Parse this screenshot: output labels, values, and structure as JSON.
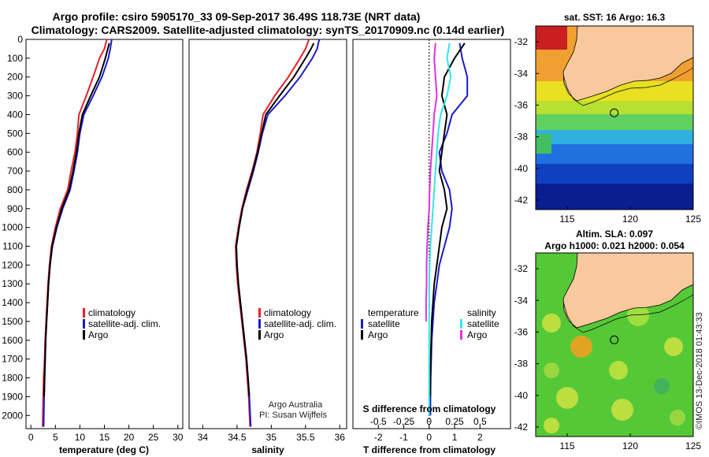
{
  "title_line1": "Argo profile: csiro 5905170_33 09-Sep-2017 36.49S 118.73E (NRT data)",
  "title_line2": "Climatology: CARS2009. Satellite-adjusted climatology: synTS_20170909.nc (0.14d earlier)",
  "colors": {
    "climatology": "#e8202a",
    "satellite_adj": "#1a1acc",
    "argo": "#000000",
    "satellite_T": "#1a1acc",
    "argo_T": "#000000",
    "satellite_S": "#33e6e6",
    "argo_S": "#dd33dd",
    "land": "#f7c99c"
  },
  "depth_ticks": [
    "0",
    "100",
    "200",
    "300",
    "400",
    "500",
    "600",
    "700",
    "800",
    "900",
    "1000",
    "1100",
    "1200",
    "1300",
    "1400",
    "1500",
    "1600",
    "1700",
    "1800",
    "1900",
    "2000"
  ],
  "legend_profiles": {
    "climatology": "climatology",
    "satellite": "satellite-adj. clim.",
    "argo": "Argo"
  },
  "legend_diff": {
    "temperature_header": "temperature",
    "salinity_header": "salinity",
    "satellite": "satellite",
    "argo": "Argo"
  },
  "credits": {
    "line1": "Argo Australia",
    "line2": "PI: Susan Wijffels"
  },
  "imos_stamp": "©IMOS 13-Dec-2018 01:43:33",
  "maps": {
    "sst_title": "sat. SST: 16 Argo: 16.3",
    "sla_title_line1": "Altim. SLA: 0.097",
    "sla_title_line2": "Argo h1000: 0.021 h2000: 0.054",
    "lat_ticks": [
      "-32",
      "-34",
      "-36",
      "-38",
      "-40",
      "-42"
    ],
    "lon_ticks": [
      "115",
      "120",
      "125"
    ],
    "argo_position": {
      "lon": 118.73,
      "lat": -36.49
    }
  },
  "chart_data": [
    {
      "type": "line",
      "name": "temperature profile",
      "xlabel": "temperature (deg C)",
      "ylabel": "",
      "xlim": [
        -1,
        31
      ],
      "ylim": [
        2070,
        0
      ],
      "x_ticks": [
        0,
        5,
        10,
        15,
        20,
        25,
        30
      ],
      "series": [
        {
          "name": "climatology",
          "x": [
            15.5,
            15.0,
            14.0,
            12.7,
            11.3,
            9.8,
            9.5,
            9.0,
            8.2,
            7.5,
            6.0,
            5.0,
            4.2,
            3.8,
            3.5,
            3.3,
            3.1,
            2.9,
            2.8,
            2.6,
            2.5,
            2.4
          ],
          "y": [
            0,
            50,
            100,
            200,
            300,
            400,
            500,
            600,
            700,
            800,
            900,
            1000,
            1100,
            1200,
            1300,
            1400,
            1500,
            1600,
            1700,
            1800,
            1900,
            2060
          ]
        },
        {
          "name": "satellite-adj. clim.",
          "x": [
            16.5,
            16.2,
            15.8,
            14.5,
            12.7,
            10.8,
            10.0,
            9.5,
            8.8,
            8.0,
            6.5,
            5.3,
            4.4,
            3.9,
            3.6,
            3.4,
            3.2,
            3.0,
            2.9,
            2.8,
            2.7,
            2.6
          ],
          "y": [
            0,
            50,
            100,
            200,
            300,
            400,
            500,
            600,
            700,
            800,
            900,
            1000,
            1100,
            1200,
            1300,
            1400,
            1500,
            1600,
            1700,
            1800,
            1900,
            2060
          ]
        },
        {
          "name": "Argo",
          "x": [
            16.0,
            15.7,
            15.2,
            14.0,
            12.2,
            10.5,
            9.8,
            9.3,
            8.6,
            7.8,
            6.3,
            5.2,
            4.3,
            3.9,
            3.6,
            3.4,
            3.2,
            3.0,
            2.9,
            2.8,
            2.7
          ],
          "y": [
            20,
            50,
            100,
            200,
            300,
            400,
            500,
            600,
            700,
            800,
            900,
            1000,
            1100,
            1200,
            1300,
            1400,
            1500,
            1600,
            1700,
            1800,
            1900
          ]
        }
      ]
    },
    {
      "type": "line",
      "name": "salinity profile",
      "xlabel": "salinity",
      "ylabel": "",
      "xlim": [
        33.8,
        36.1
      ],
      "ylim": [
        2070,
        0
      ],
      "x_ticks": [
        34,
        34.5,
        35,
        35.5,
        36
      ],
      "series": [
        {
          "name": "climatology",
          "x": [
            35.55,
            35.5,
            35.42,
            35.25,
            35.05,
            34.88,
            34.84,
            34.79,
            34.72,
            34.64,
            34.57,
            34.52,
            34.48,
            34.49,
            34.51,
            34.54,
            34.57,
            34.6,
            34.63,
            34.65,
            34.67,
            34.69
          ],
          "y": [
            0,
            50,
            100,
            200,
            300,
            400,
            500,
            600,
            700,
            800,
            900,
            1000,
            1100,
            1200,
            1300,
            1400,
            1500,
            1600,
            1700,
            1800,
            1900,
            2060
          ]
        },
        {
          "name": "satellite-adj. clim.",
          "x": [
            35.7,
            35.67,
            35.6,
            35.42,
            35.2,
            34.95,
            34.87,
            34.81,
            34.74,
            34.66,
            34.58,
            34.53,
            34.49,
            34.5,
            34.52,
            34.55,
            34.58,
            34.61,
            34.64,
            34.66,
            34.68,
            34.7
          ],
          "y": [
            0,
            50,
            100,
            200,
            300,
            400,
            500,
            600,
            700,
            800,
            900,
            1000,
            1100,
            1200,
            1300,
            1400,
            1500,
            1600,
            1700,
            1800,
            1900,
            2060
          ]
        },
        {
          "name": "Argo",
          "x": [
            35.62,
            35.58,
            35.5,
            35.33,
            35.12,
            34.92,
            34.86,
            34.8,
            34.73,
            34.65,
            34.58,
            34.53,
            34.49,
            34.5,
            34.52,
            34.55,
            34.58,
            34.61,
            34.64,
            34.66,
            34.68
          ],
          "y": [
            20,
            50,
            100,
            200,
            300,
            400,
            500,
            600,
            700,
            800,
            900,
            1000,
            1100,
            1200,
            1300,
            1400,
            1500,
            1600,
            1700,
            1800,
            1900
          ]
        }
      ]
    },
    {
      "type": "line",
      "name": "difference from climatology",
      "xlabel": "T difference from climatology",
      "xlabel_top": "S difference from climatology",
      "ylabel": "",
      "xlim": [
        -3,
        3.2
      ],
      "ylim": [
        2070,
        0
      ],
      "x_ticks": [
        -2,
        -1,
        0,
        1,
        2
      ],
      "x_top_ticks": [
        "-0.5",
        "-0.25",
        "0",
        "0.25",
        "0.5"
      ],
      "series": [
        {
          "name": "satellite T",
          "x": [
            1.2,
            1.3,
            1.5,
            1.5,
            0.9,
            0.7,
            0.4,
            0.5,
            0.8,
            0.9,
            0.8,
            0.6,
            0.4,
            0.3,
            0.2,
            0.15,
            0.1,
            0.08,
            0.06,
            0.05,
            0.05
          ],
          "y": [
            20,
            100,
            200,
            300,
            400,
            500,
            600,
            700,
            800,
            900,
            1000,
            1100,
            1200,
            1300,
            1400,
            1500,
            1600,
            1700,
            1800,
            1900,
            2000
          ]
        },
        {
          "name": "Argo T",
          "x": [
            1.4,
            1.0,
            0.6,
            0.5,
            0.7,
            0.6,
            0.5,
            0.4,
            0.6,
            0.7,
            0.5,
            0.4,
            0.3,
            0.2,
            0.15,
            0.1,
            0.08,
            0.06,
            0.05,
            0.04
          ],
          "y": [
            20,
            100,
            200,
            300,
            400,
            500,
            600,
            700,
            800,
            900,
            1000,
            1100,
            1200,
            1300,
            1400,
            1500,
            1600,
            1700,
            1800,
            1900
          ]
        },
        {
          "name": "satellite S",
          "x": [
            0.8,
            0.7,
            0.85,
            0.7,
            0.45,
            0.35,
            0.3,
            0.25,
            0.2,
            0.15,
            0.1,
            0.05,
            0.02,
            0.0,
            0.0,
            0.0,
            0.0,
            0.0,
            0.0,
            0.0,
            0.0
          ],
          "y": [
            20,
            100,
            200,
            300,
            400,
            500,
            600,
            700,
            800,
            900,
            1000,
            1100,
            1200,
            1300,
            1400,
            1500,
            1600,
            1700,
            1800,
            1900,
            2000
          ]
        },
        {
          "name": "Argo S",
          "x": [
            0.25,
            0.2,
            0.25,
            0.3,
            0.2,
            0.15,
            0.1,
            0.05,
            0.02,
            0.0,
            -0.05,
            -0.08,
            -0.1,
            -0.1,
            -0.12,
            -0.12
          ],
          "y": [
            20,
            100,
            200,
            300,
            400,
            500,
            600,
            700,
            800,
            900,
            1000,
            1100,
            1200,
            1300,
            1400,
            1500
          ]
        }
      ]
    }
  ]
}
